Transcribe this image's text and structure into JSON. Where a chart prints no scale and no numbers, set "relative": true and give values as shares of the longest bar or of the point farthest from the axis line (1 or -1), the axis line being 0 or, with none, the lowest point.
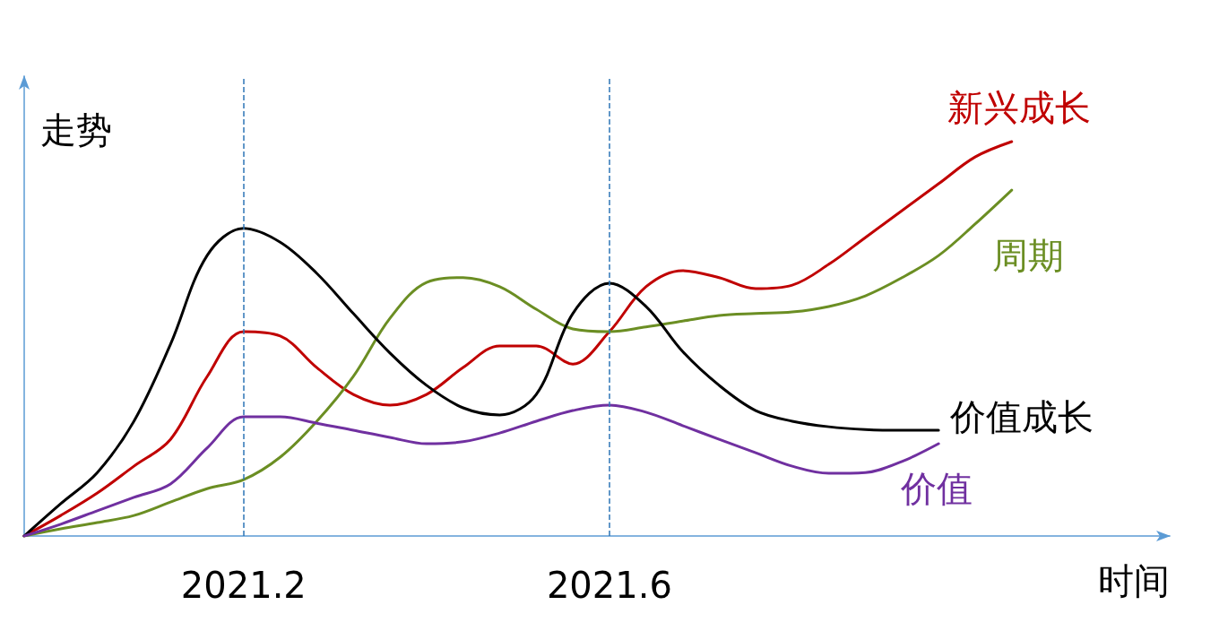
{
  "chart_data": {
    "type": "line",
    "relative": true,
    "xlabel": "时间",
    "ylabel": "走势",
    "legend": false,
    "grid": false,
    "marker": "none",
    "line_style": "solid",
    "categories": [
      null,
      null,
      null,
      null,
      null,
      null,
      "2021.2",
      null,
      null,
      null,
      null,
      null,
      null,
      null,
      null,
      null,
      "2021.6",
      null,
      null,
      null,
      null,
      null,
      null,
      null,
      null,
      null,
      null,
      null
    ],
    "series": [
      {
        "name": "新兴成长",
        "color": "#c00000",
        "values": [
          0,
          0.052,
          0.109,
          0.177,
          0.245,
          0.404,
          0.518,
          0.507,
          0.427,
          0.359,
          0.332,
          0.359,
          0.427,
          0.482,
          0.482,
          0.436,
          0.518,
          0.632,
          0.673,
          0.655,
          0.627,
          0.636,
          0.689,
          0.757,
          0.825,
          0.893,
          0.961,
          1
        ]
      },
      {
        "name": "周期",
        "color": "#6b8e23",
        "values": [
          0,
          0.018,
          0.034,
          0.052,
          0.086,
          0.12,
          0.143,
          0.2,
          0.291,
          0.405,
          0.552,
          0.643,
          0.655,
          0.632,
          0.575,
          0.525,
          0.518,
          0.53,
          0.545,
          0.559,
          0.564,
          0.568,
          0.582,
          0.609,
          0.655,
          0.711,
          0.791,
          0.877
        ]
      },
      {
        "name": "价值成长",
        "color": "#000000",
        "values": [
          0,
          0.082,
          0.161,
          0.291,
          0.486,
          0.711,
          0.78,
          0.745,
          0.666,
          0.564,
          0.464,
          0.382,
          0.325,
          0.307,
          0.359,
          0.564,
          0.641,
          0.582,
          0.468,
          0.382,
          0.318,
          0.291,
          0.277,
          0.27,
          0.268,
          0.268,
          null,
          null
        ]
      },
      {
        "name": "价值",
        "color": "#7030a0",
        "values": [
          0,
          0.03,
          0.064,
          0.098,
          0.132,
          0.223,
          0.302,
          0.302,
          0.286,
          0.268,
          0.25,
          0.234,
          0.239,
          0.261,
          0.291,
          0.318,
          0.332,
          0.314,
          0.28,
          0.245,
          0.211,
          0.177,
          0.159,
          0.161,
          0.189,
          0.234,
          null,
          null
        ]
      }
    ],
    "ref_lines": [
      {
        "axis": "x",
        "value": "2021.2",
        "color": "#2e75b6",
        "line_style": "dashed"
      },
      {
        "axis": "x",
        "value": "2021.6",
        "color": "#2e75b6",
        "line_style": "dashed"
      }
    ]
  }
}
